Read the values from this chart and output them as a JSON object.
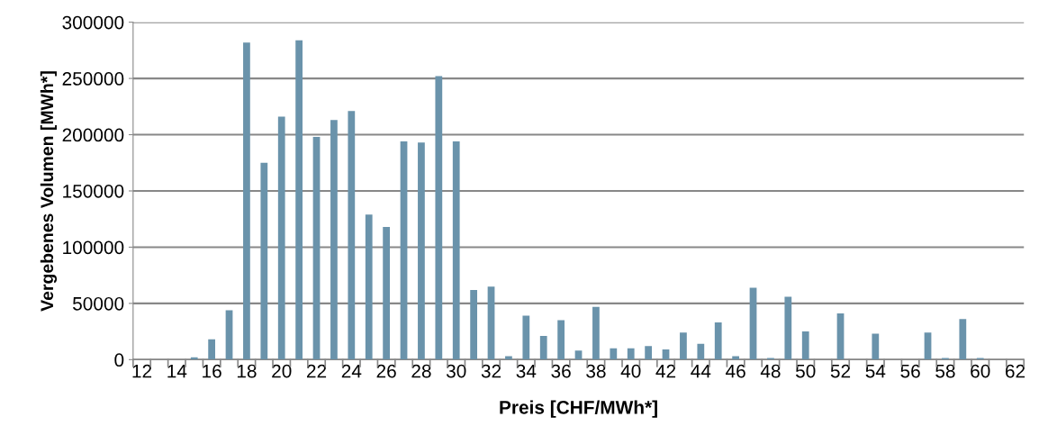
{
  "chart_data": {
    "type": "bar",
    "xlabel": "Preis [CHF/MWh*]",
    "ylabel": "Vergebenes Volumen [MWh*]",
    "categories": [
      "12",
      null,
      "14",
      null,
      "16",
      null,
      "18",
      null,
      "20",
      null,
      "22",
      null,
      "24",
      null,
      "26",
      null,
      "28",
      null,
      "30",
      null,
      "32",
      null,
      "34",
      null,
      "36",
      null,
      "38",
      null,
      "40",
      null,
      "42",
      null,
      "44",
      null,
      "46",
      null,
      "48",
      null,
      "50",
      null,
      "52",
      null,
      "54",
      null,
      "56",
      null,
      "58",
      null,
      "60",
      null,
      "62"
    ],
    "values": [
      0,
      0,
      0,
      2000,
      18000,
      44000,
      282000,
      175000,
      216000,
      284000,
      198000,
      213000,
      221000,
      129000,
      118000,
      194000,
      193000,
      252000,
      194000,
      62000,
      65000,
      3000,
      39000,
      21000,
      35000,
      8000,
      47000,
      10000,
      10000,
      12000,
      9000,
      24000,
      14000,
      33000,
      3000,
      64000,
      1500,
      56000,
      25000,
      0,
      41000,
      0,
      23000,
      0,
      0,
      24000,
      1500,
      36000,
      1500,
      0,
      0
    ],
    "color": "#6a93ab",
    "ylim": [
      0,
      300000
    ],
    "yticks": [
      0,
      50000,
      100000,
      150000,
      200000,
      250000,
      300000
    ],
    "grid": "y",
    "legend": false
  }
}
